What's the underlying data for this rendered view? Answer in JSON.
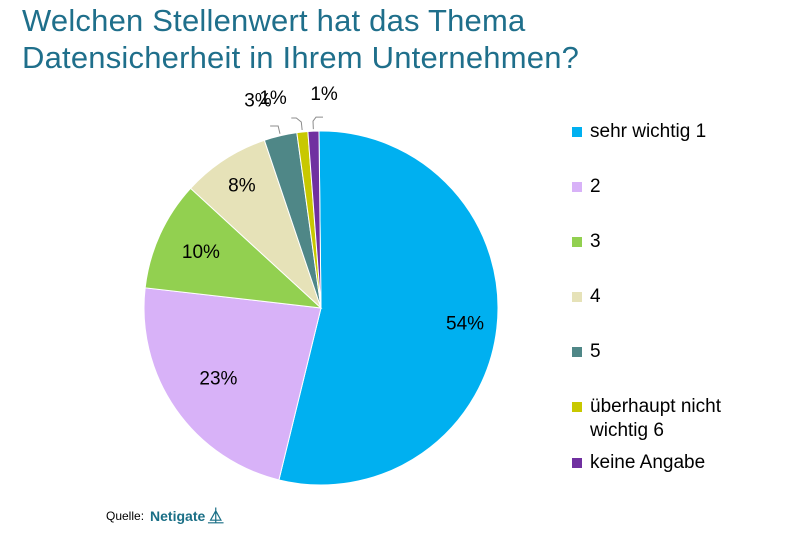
{
  "title": {
    "line1": "Welchen Stellenwert hat das Thema",
    "line2": "Datensicherheit  in Ihrem Unternehmen?"
  },
  "chart_data": {
    "type": "pie",
    "slices": [
      {
        "label": "sehr wichtig 1",
        "value": 54,
        "display": "54%",
        "color": "#00b0f0"
      },
      {
        "label": "2",
        "value": 23,
        "display": "23%",
        "color": "#d8b2f8"
      },
      {
        "label": "3",
        "value": 10,
        "display": "10%",
        "color": "#92d050"
      },
      {
        "label": "4",
        "value": 8,
        "display": "8%",
        "color": "#e6e2b8"
      },
      {
        "label": "5",
        "value": 3,
        "display": "3%",
        "color": "#4f8787"
      },
      {
        "label": "überhaupt nicht wichtig 6",
        "value": 1,
        "display": "1%",
        "color": "#c8c800"
      },
      {
        "label": "keine Angabe",
        "value": 1,
        "display": "1%",
        "color": "#7030a0"
      }
    ],
    "legend_position": "right"
  },
  "legend": {
    "items": [
      {
        "label": "sehr wichtig 1",
        "color": "#00b0f0"
      },
      {
        "label": "2",
        "color": "#d8b2f8"
      },
      {
        "label": "3",
        "color": "#92d050"
      },
      {
        "label": "4",
        "color": "#e6e2b8"
      },
      {
        "label": "5",
        "color": "#4f8787"
      },
      {
        "label": "überhaupt nicht wichtig 6",
        "color": "#c8c800"
      },
      {
        "label": "keine Angabe",
        "color": "#7030a0"
      }
    ]
  },
  "source": {
    "label": "Quelle:",
    "brand": "Netigate"
  }
}
